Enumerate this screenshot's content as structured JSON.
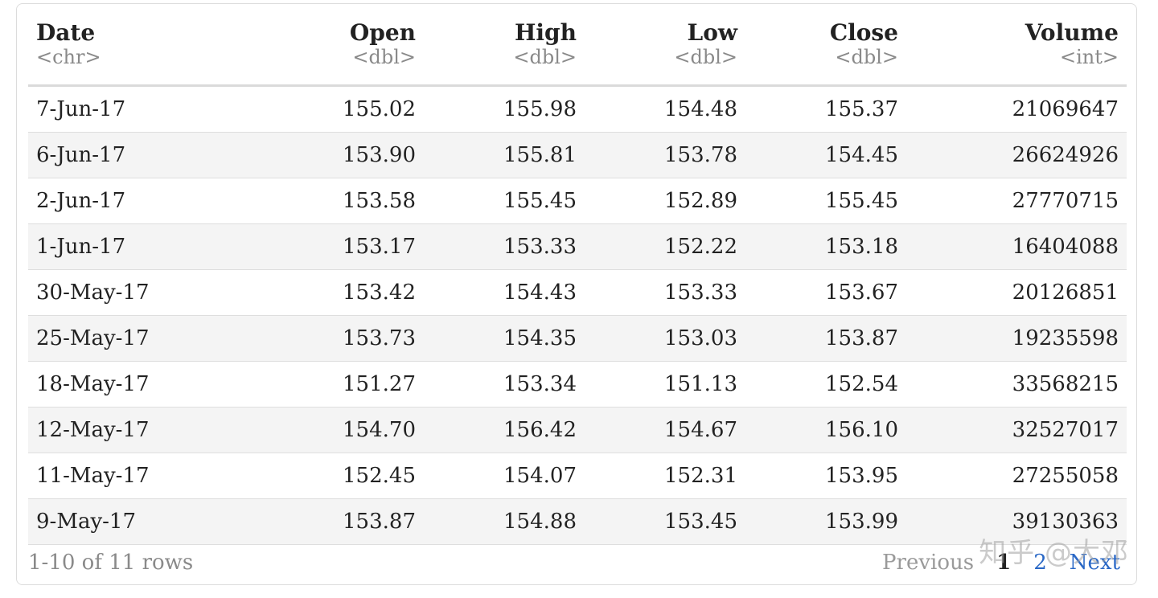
{
  "table": {
    "columns": [
      {
        "name": "Date",
        "type": "<chr>",
        "align": "left"
      },
      {
        "name": "Open",
        "type": "<dbl>",
        "align": "right"
      },
      {
        "name": "High",
        "type": "<dbl>",
        "align": "right"
      },
      {
        "name": "Low",
        "type": "<dbl>",
        "align": "right"
      },
      {
        "name": "Close",
        "type": "<dbl>",
        "align": "right"
      },
      {
        "name": "Volume",
        "type": "<int>",
        "align": "right"
      }
    ],
    "rows": [
      [
        "7-Jun-17",
        "155.02",
        "155.98",
        "154.48",
        "155.37",
        "21069647"
      ],
      [
        "6-Jun-17",
        "153.90",
        "155.81",
        "153.78",
        "154.45",
        "26624926"
      ],
      [
        "2-Jun-17",
        "153.58",
        "155.45",
        "152.89",
        "155.45",
        "27770715"
      ],
      [
        "1-Jun-17",
        "153.17",
        "153.33",
        "152.22",
        "153.18",
        "16404088"
      ],
      [
        "30-May-17",
        "153.42",
        "154.43",
        "153.33",
        "153.67",
        "20126851"
      ],
      [
        "25-May-17",
        "153.73",
        "154.35",
        "153.03",
        "153.87",
        "19235598"
      ],
      [
        "18-May-17",
        "151.27",
        "153.34",
        "151.13",
        "152.54",
        "33568215"
      ],
      [
        "12-May-17",
        "154.70",
        "156.42",
        "154.67",
        "156.10",
        "32527017"
      ],
      [
        "11-May-17",
        "152.45",
        "154.07",
        "152.31",
        "153.95",
        "27255058"
      ],
      [
        "9-May-17",
        "153.87",
        "154.88",
        "153.45",
        "153.99",
        "39130363"
      ]
    ]
  },
  "footer": {
    "row_count": "1-10 of 11 rows",
    "previous_label": "Previous",
    "current_page": "1",
    "page_2": "2",
    "next_label": "Next"
  },
  "watermark": "知乎 @大邓",
  "colors": {
    "stripe": "#f4f4f4",
    "link": "#2a68c6",
    "muted": "#8a8a8a"
  }
}
